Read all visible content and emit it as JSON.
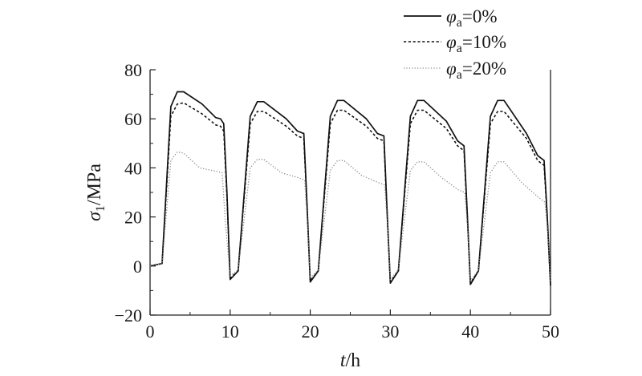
{
  "chart_data": {
    "type": "line",
    "xlabel": "t/h",
    "ylabel": "σ1/MPa",
    "xlim": [
      0,
      50
    ],
    "ylim": [
      -20,
      80
    ],
    "x_ticks": [
      "0",
      "10",
      "20",
      "30",
      "40",
      "50"
    ],
    "y_ticks": [
      "−20",
      "0",
      "20",
      "40",
      "60",
      "80"
    ],
    "grid": false,
    "legend_position": "top-right",
    "series": [
      {
        "name": "φa=0%",
        "line_style": "solid",
        "color": "#111111",
        "x": [
          0,
          1.5,
          2.6,
          3.4,
          4.2,
          6.5,
          8.2,
          8.8,
          9.2,
          9.6,
          10.0,
          11,
          12.5,
          13.4,
          14.2,
          17,
          18.4,
          19.2,
          19.6,
          20.0,
          21,
          22.5,
          23.4,
          24.2,
          27,
          28.4,
          29.2,
          29.6,
          30.0,
          31,
          32.5,
          33.4,
          34.2,
          37,
          38.4,
          39.2,
          39.6,
          40.0,
          41,
          42.5,
          43.4,
          44.2,
          47,
          48.4,
          49.2,
          49.6,
          50.0
        ],
        "y": [
          0,
          1,
          65,
          71,
          71,
          66,
          60.5,
          60,
          58,
          30,
          -5.5,
          -2,
          61,
          67,
          67,
          60,
          55,
          54,
          25,
          -6.5,
          -2,
          61,
          67.5,
          67.5,
          60,
          54,
          53,
          22,
          -7,
          -2,
          61,
          67.5,
          67.5,
          59,
          51,
          49,
          22,
          -7.5,
          -2,
          61,
          67.5,
          67.5,
          54,
          45,
          43,
          20,
          -8
        ]
      },
      {
        "name": "φa=10%",
        "line_style": "dashed",
        "color": "#111111",
        "x": [
          0,
          1.5,
          2.6,
          3.4,
          4.2,
          6.5,
          8.2,
          8.8,
          9.2,
          9.6,
          10.0,
          11,
          12.5,
          13.4,
          14.2,
          17,
          18.4,
          19.2,
          19.6,
          20.0,
          21,
          22.5,
          23.4,
          24.2,
          27,
          28.4,
          29.2,
          29.6,
          30.0,
          31,
          32.5,
          33.4,
          34.2,
          37,
          38.4,
          39.2,
          39.6,
          40.0,
          41,
          42.5,
          43.4,
          44.2,
          47,
          48.4,
          49.2,
          49.6,
          50.0
        ],
        "y": [
          0,
          1,
          61,
          66,
          66.5,
          62,
          57.5,
          57,
          55,
          28,
          -5,
          -2,
          58,
          63,
          63,
          57,
          53,
          52,
          24,
          -6,
          -2,
          58,
          63.5,
          63.5,
          57,
          52,
          51,
          21,
          -6.5,
          -2,
          58,
          63.5,
          63.5,
          56,
          49,
          47,
          21,
          -7,
          -2,
          58,
          63,
          63,
          52,
          43,
          41,
          19,
          -7.5
        ]
      },
      {
        "name": "φa=20%",
        "line_style": "dotted",
        "color": "#888888",
        "x": [
          0,
          1.5,
          2.6,
          3.4,
          4.2,
          6.2,
          8.4,
          9.0,
          9.4,
          10.0,
          11,
          12.5,
          13.4,
          14.2,
          16.4,
          18.5,
          19.3,
          19.7,
          20.0,
          21,
          22.5,
          23.4,
          24.2,
          26.4,
          28.5,
          29.3,
          29.7,
          30.0,
          31,
          32.5,
          33.4,
          34.2,
          36.4,
          38.5,
          39.3,
          39.7,
          40.0,
          41,
          42.5,
          43.4,
          44.2,
          46.4,
          48.5,
          49.3,
          49.7,
          50.0
        ],
        "y": [
          0,
          1,
          43,
          46.5,
          46,
          40,
          38.5,
          38,
          18,
          -4,
          -1.5,
          40,
          43.5,
          43.5,
          38,
          36,
          35,
          15,
          -5,
          -1.5,
          39,
          43,
          43,
          37,
          34,
          33,
          14,
          -5.5,
          -1.5,
          39,
          42.5,
          42.5,
          36,
          31,
          30,
          13,
          -6,
          -1.5,
          38,
          42.5,
          42.5,
          34,
          28,
          26,
          12,
          -6.5
        ]
      }
    ]
  }
}
